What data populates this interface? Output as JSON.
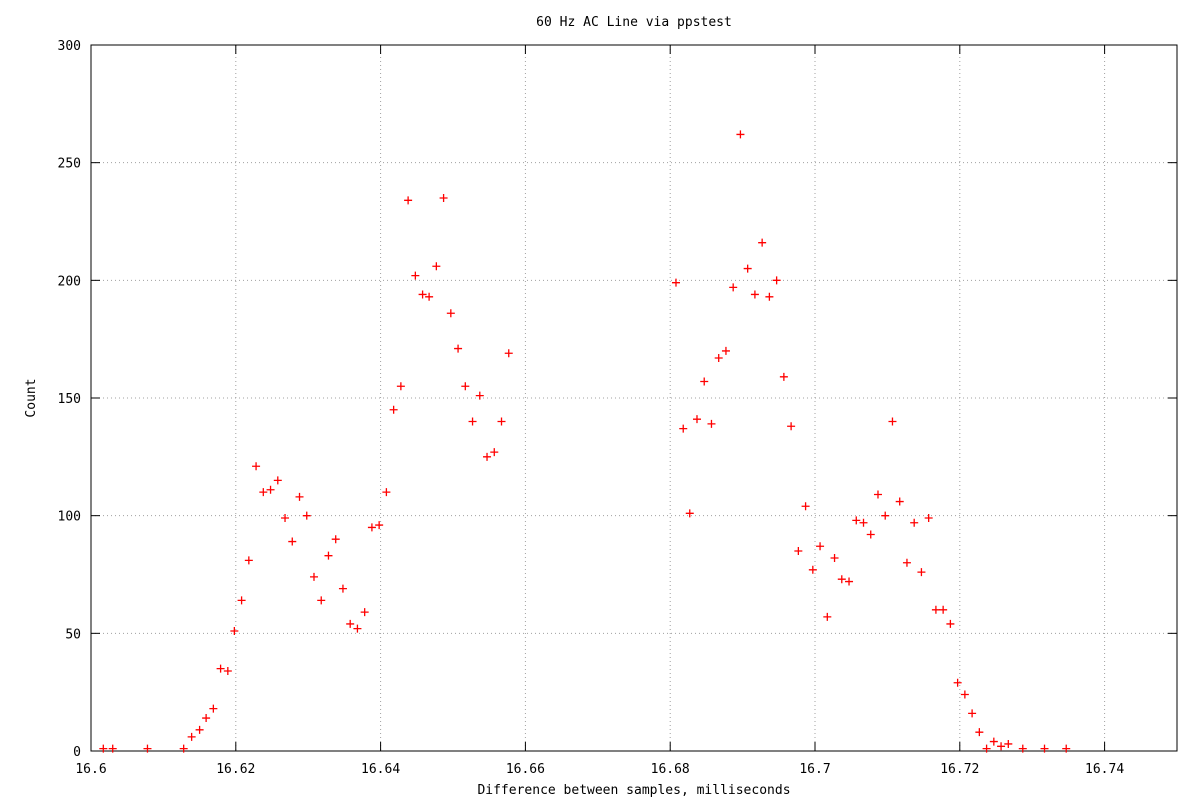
{
  "chart_data": {
    "type": "scatter",
    "title": "60 Hz AC Line via ppstest",
    "xlabel": "Difference between samples, milliseconds",
    "ylabel": "Count",
    "xlim": [
      16.6,
      16.75
    ],
    "ylim": [
      0,
      300
    ],
    "xticks": [
      16.6,
      16.62,
      16.64,
      16.66,
      16.68,
      16.7,
      16.72,
      16.74
    ],
    "xtick_labels": [
      "16.6",
      "16.62",
      "16.64",
      "16.66",
      "16.68",
      "16.7",
      "16.72",
      "16.74"
    ],
    "yticks": [
      0,
      50,
      100,
      150,
      200,
      250,
      300
    ],
    "ytick_labels": [
      "0",
      "50",
      "100",
      "150",
      "200",
      "250",
      "300"
    ],
    "grid": true,
    "marker": "+",
    "color": "#ff0000",
    "points": [
      [
        16.6017,
        1
      ],
      [
        16.603,
        1
      ],
      [
        16.6078,
        1
      ],
      [
        16.6128,
        1
      ],
      [
        16.6139,
        6
      ],
      [
        16.615,
        9
      ],
      [
        16.6159,
        14
      ],
      [
        16.6169,
        18
      ],
      [
        16.6179,
        35
      ],
      [
        16.6189,
        34
      ],
      [
        16.6198,
        51
      ],
      [
        16.6208,
        64
      ],
      [
        16.6218,
        81
      ],
      [
        16.6228,
        121
      ],
      [
        16.6238,
        110
      ],
      [
        16.6248,
        111
      ],
      [
        16.6258,
        115
      ],
      [
        16.6268,
        99
      ],
      [
        16.6278,
        89
      ],
      [
        16.6288,
        108
      ],
      [
        16.6298,
        100
      ],
      [
        16.6308,
        74
      ],
      [
        16.6318,
        64
      ],
      [
        16.6328,
        83
      ],
      [
        16.6338,
        90
      ],
      [
        16.6348,
        69
      ],
      [
        16.6358,
        54
      ],
      [
        16.6368,
        52
      ],
      [
        16.6378,
        59
      ],
      [
        16.6388,
        95
      ],
      [
        16.6398,
        96
      ],
      [
        16.6408,
        110
      ],
      [
        16.6418,
        145
      ],
      [
        16.6428,
        155
      ],
      [
        16.6438,
        234
      ],
      [
        16.6448,
        202
      ],
      [
        16.6458,
        194
      ],
      [
        16.6467,
        193
      ],
      [
        16.6477,
        206
      ],
      [
        16.6487,
        235
      ],
      [
        16.6497,
        186
      ],
      [
        16.6507,
        171
      ],
      [
        16.6517,
        155
      ],
      [
        16.6527,
        140
      ],
      [
        16.6537,
        151
      ],
      [
        16.6547,
        125
      ],
      [
        16.6557,
        127
      ],
      [
        16.6567,
        140
      ],
      [
        16.6577,
        169
      ],
      [
        16.6808,
        199
      ],
      [
        16.6818,
        137
      ],
      [
        16.6827,
        101
      ],
      [
        16.6837,
        141
      ],
      [
        16.6847,
        157
      ],
      [
        16.6857,
        139
      ],
      [
        16.6867,
        167
      ],
      [
        16.6877,
        170
      ],
      [
        16.6887,
        197
      ],
      [
        16.6897,
        262
      ],
      [
        16.6907,
        205
      ],
      [
        16.6917,
        194
      ],
      [
        16.6927,
        216
      ],
      [
        16.6937,
        193
      ],
      [
        16.6947,
        200
      ],
      [
        16.6957,
        159
      ],
      [
        16.6967,
        138
      ],
      [
        16.6977,
        85
      ],
      [
        16.6987,
        104
      ],
      [
        16.6997,
        77
      ],
      [
        16.7007,
        87
      ],
      [
        16.7017,
        57
      ],
      [
        16.7027,
        82
      ],
      [
        16.7037,
        73
      ],
      [
        16.7047,
        72
      ],
      [
        16.7057,
        98
      ],
      [
        16.7067,
        97
      ],
      [
        16.7077,
        92
      ],
      [
        16.7087,
        109
      ],
      [
        16.7097,
        100
      ],
      [
        16.7107,
        140
      ],
      [
        16.7117,
        106
      ],
      [
        16.7127,
        80
      ],
      [
        16.7137,
        97
      ],
      [
        16.7147,
        76
      ],
      [
        16.7157,
        99
      ],
      [
        16.7167,
        60
      ],
      [
        16.7177,
        60
      ],
      [
        16.7187,
        54
      ],
      [
        16.7197,
        29
      ],
      [
        16.7207,
        24
      ],
      [
        16.7217,
        16
      ],
      [
        16.7227,
        8
      ],
      [
        16.7237,
        1
      ],
      [
        16.7247,
        4
      ],
      [
        16.7257,
        2
      ],
      [
        16.7267,
        3
      ],
      [
        16.7287,
        1
      ],
      [
        16.7317,
        1
      ],
      [
        16.7347,
        1
      ]
    ]
  }
}
